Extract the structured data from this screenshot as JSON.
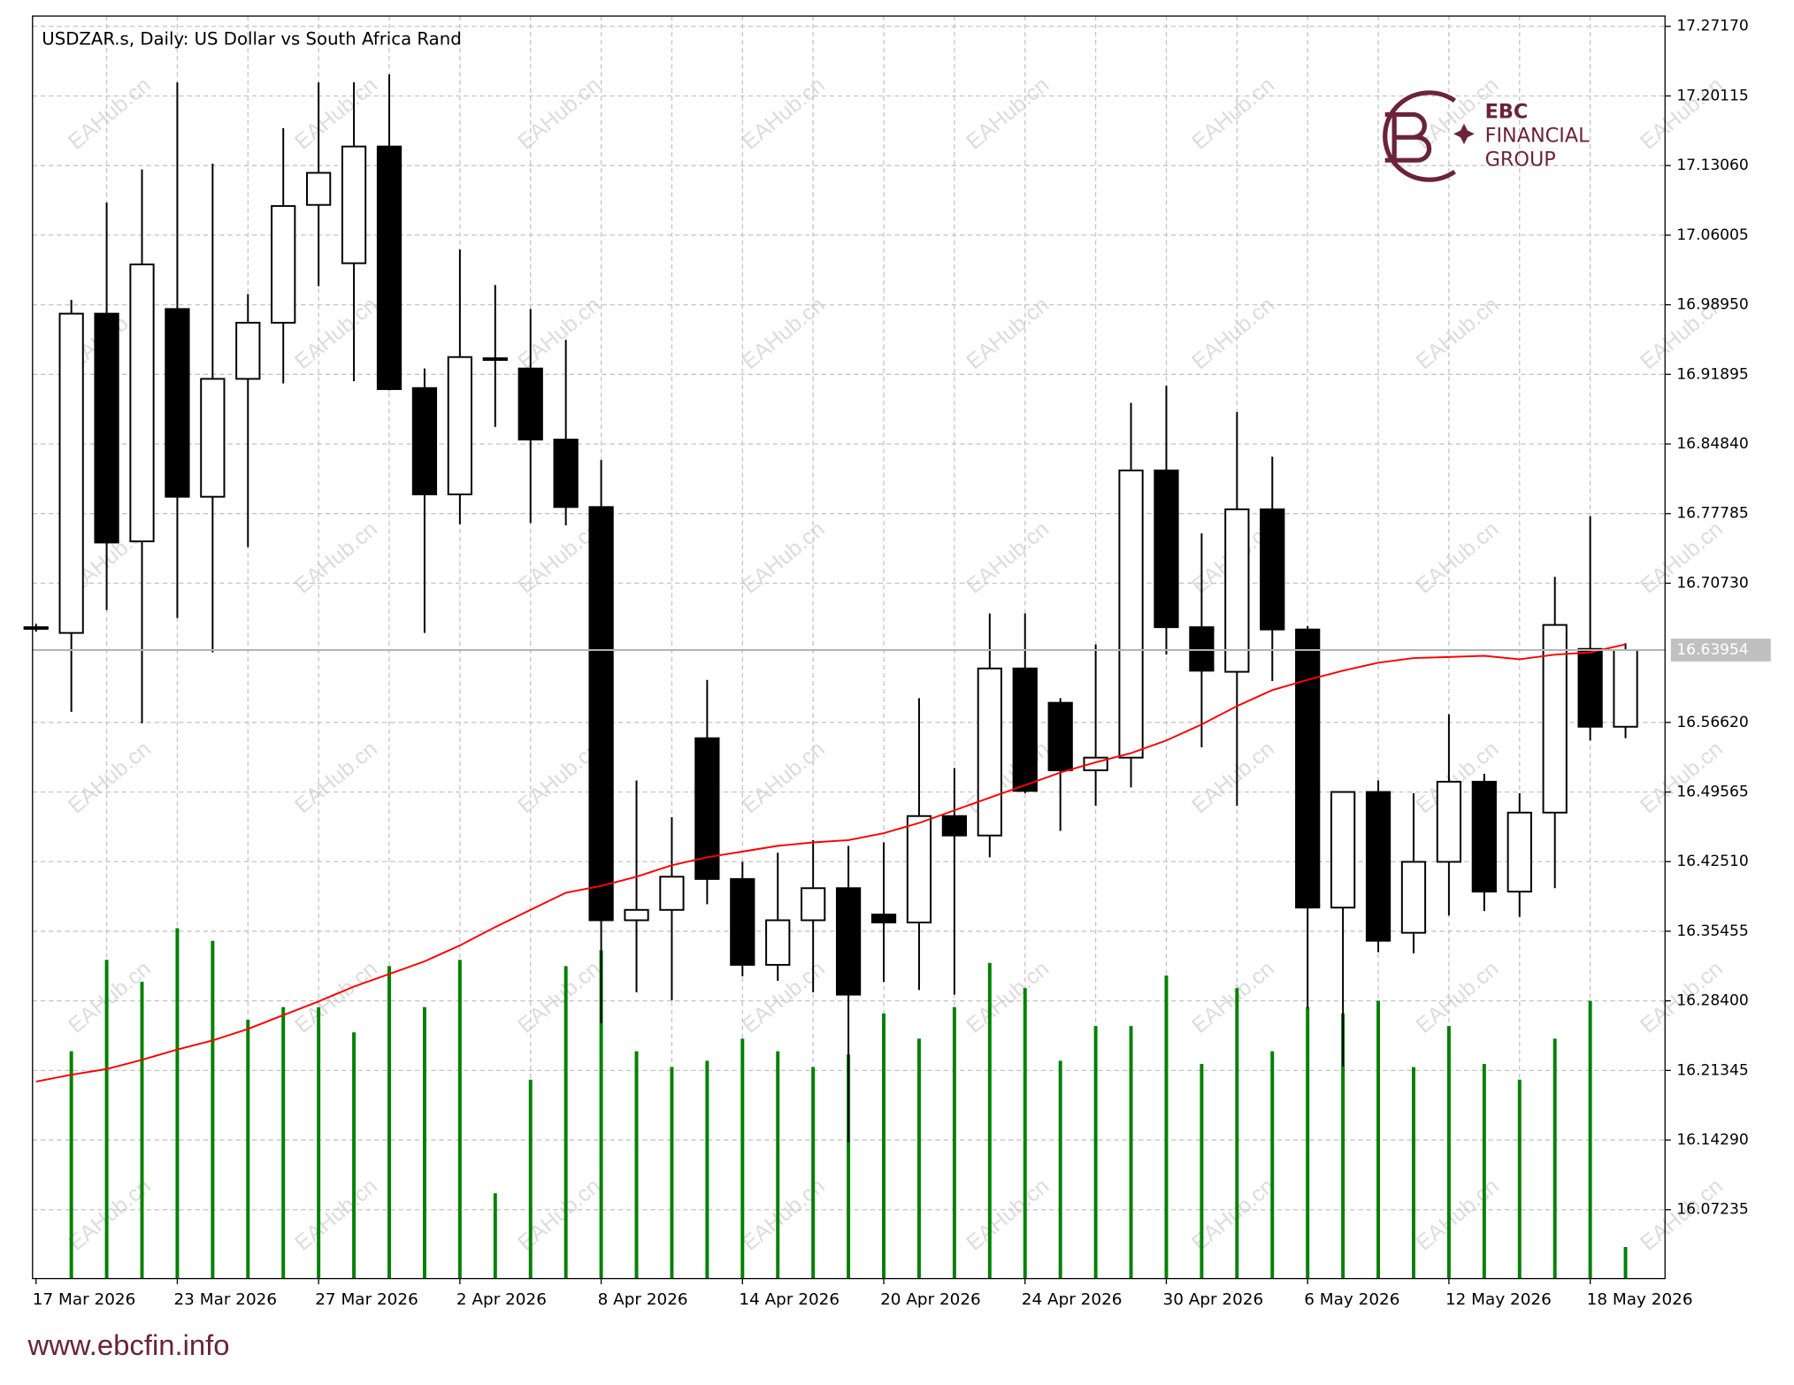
{
  "chart_data": {
    "type": "candlestick",
    "title": "USDZAR.s, Daily:  US Dollar vs South Africa Rand",
    "watermark": "EAHub.cn",
    "logo": {
      "top": "EBC",
      "middle": "FINANCIAL",
      "bottom": "GROUP",
      "color": "#6b2437"
    },
    "footer": "www.ebcfin.info",
    "categories": [
      "17 Mar 2026",
      null,
      null,
      null,
      "23 Mar 2026",
      null,
      null,
      null,
      "27 Mar 2026",
      null,
      null,
      null,
      "2 Apr 2026",
      null,
      null,
      null,
      "8 Apr 2026",
      null,
      null,
      null,
      "14 Apr 2026",
      null,
      null,
      null,
      "20 Apr 2026",
      null,
      null,
      null,
      "24 Apr 2026",
      null,
      null,
      null,
      "30 Apr 2026",
      null,
      null,
      null,
      "6 May 2026",
      null,
      null,
      null,
      "12 May 2026",
      null,
      null,
      null,
      "18 May 2026",
      null
    ],
    "open": [
      16.6615,
      16.6569,
      16.9805,
      16.7497,
      16.9852,
      16.7949,
      16.9144,
      16.9713,
      17.0907,
      17.0316,
      17.1499,
      16.9051,
      16.7973,
      16.9353,
      16.9249,
      16.8529,
      16.7845,
      16.3657,
      16.3762,
      16.5502,
      16.4075,
      16.3205,
      16.3657,
      16.3982,
      16.3715,
      16.3634,
      16.4713,
      16.4516,
      16.6209,
      16.5861,
      16.5177,
      16.5305,
      16.8216,
      16.6627,
      16.6175,
      16.7822,
      16.6604,
      16.3785,
      16.4957,
      16.353,
      16.4249,
      16.5061,
      16.3947,
      16.4748,
      16.6407,
      16.5618
    ],
    "high": [
      16.6662,
      16.9945,
      17.0931,
      17.1267,
      17.2149,
      17.1325,
      17.0003,
      17.1685,
      17.2149,
      17.2149,
      17.223,
      16.9249,
      17.0455,
      17.0095,
      16.9852,
      16.9539,
      16.8321,
      16.5073,
      16.4701,
      16.6093,
      16.4249,
      16.4342,
      16.4469,
      16.4411,
      16.4446,
      16.5908,
      16.52,
      16.6766,
      16.6766,
      16.5908,
      16.6453,
      16.8901,
      16.9075,
      16.7578,
      16.8808,
      16.8355,
      16.6639,
      16.4957,
      16.5073,
      16.4945,
      16.5745,
      16.5142,
      16.4945,
      16.7137,
      16.7752,
      16.6465
    ],
    "low": [
      16.6581,
      16.5769,
      16.6801,
      16.5653,
      16.672,
      16.6372,
      16.7439,
      16.9098,
      17.0084,
      16.9121,
      16.9028,
      16.6569,
      16.7671,
      16.8657,
      16.7683,
      16.7659,
      16.2613,
      16.2927,
      16.2845,
      16.382,
      16.3089,
      16.3043,
      16.2927,
      16.1407,
      16.3031,
      16.295,
      16.2903,
      16.4295,
      16.4945,
      16.4562,
      16.4817,
      16.5003,
      16.6349,
      16.5409,
      16.4817,
      16.6082,
      16.2764,
      16.2173,
      16.3333,
      16.3321,
      16.3704,
      16.375,
      16.3692,
      16.3982,
      16.5479,
      16.5502
    ],
    "close": [
      16.6627,
      16.9805,
      16.7485,
      17.0304,
      16.7949,
      16.9144,
      16.9713,
      17.0896,
      17.1232,
      17.1499,
      16.904,
      16.7973,
      16.9365,
      16.9341,
      16.8529,
      16.7845,
      16.3657,
      16.3762,
      16.4098,
      16.4075,
      16.3205,
      16.3657,
      16.3982,
      16.2903,
      16.3634,
      16.4713,
      16.4516,
      16.6209,
      16.4968,
      16.5177,
      16.5305,
      16.8216,
      16.6627,
      16.6186,
      16.7822,
      16.6604,
      16.3785,
      16.4957,
      16.3449,
      16.4249,
      16.5061,
      16.3947,
      16.4748,
      16.665,
      16.5618,
      16.63954
    ],
    "bull_color": "#ffffff",
    "bear_color": "#000000",
    "wick_color": "#000000",
    "ma": {
      "color": "#ff0000",
      "values": [
        16.2022,
        16.2091,
        16.2149,
        16.2242,
        16.2347,
        16.2439,
        16.2555,
        16.2695,
        16.2834,
        16.2985,
        16.3112,
        16.324,
        16.3402,
        16.3588,
        16.3762,
        16.3936,
        16.4005,
        16.4098,
        16.4214,
        16.4295,
        16.4353,
        16.4411,
        16.4446,
        16.4469,
        16.4539,
        16.4643,
        16.4771,
        16.4899,
        16.5026,
        16.5154,
        16.5258,
        16.5351,
        16.5479,
        16.5641,
        16.5827,
        16.5989,
        16.6093,
        16.6186,
        16.6267,
        16.6314,
        16.6325,
        16.6337,
        16.6302,
        16.6349,
        16.6372,
        16.6453
      ]
    },
    "volume": {
      "color": "#008000",
      "values": [
        null,
        72,
        101,
        94,
        111,
        107,
        82,
        86,
        86,
        78,
        99,
        86,
        101,
        27,
        63,
        99,
        104,
        72,
        67,
        69,
        76,
        72,
        67,
        71,
        84,
        76,
        86,
        100,
        92,
        69,
        80,
        80,
        96,
        68,
        92,
        72,
        86,
        84,
        88,
        67,
        80,
        68,
        63,
        76,
        88,
        10
      ]
    },
    "volume_lim": [
      0,
      400
    ],
    "ylim": [
      16.00255,
      17.28214
    ],
    "yticks": [
      {
        "value": 17.2717,
        "label": "17.27170"
      },
      {
        "value": 17.20115,
        "label": "17.20115"
      },
      {
        "value": 17.1306,
        "label": "17.13060"
      },
      {
        "value": 17.06005,
        "label": "17.06005"
      },
      {
        "value": 16.9895,
        "label": "16.98950"
      },
      {
        "value": 16.91895,
        "label": "16.91895"
      },
      {
        "value": 16.8484,
        "label": "16.84840"
      },
      {
        "value": 16.77785,
        "label": "16.77785"
      },
      {
        "value": 16.7073,
        "label": "16.70730"
      },
      {
        "value": 16.5662,
        "label": "16.56620"
      },
      {
        "value": 16.49565,
        "label": "16.49565"
      },
      {
        "value": 16.4251,
        "label": "16.42510"
      },
      {
        "value": 16.35455,
        "label": "16.35455"
      },
      {
        "value": 16.284,
        "label": "16.28400"
      },
      {
        "value": 16.21345,
        "label": "16.21345"
      },
      {
        "value": 16.1429,
        "label": "16.14290"
      },
      {
        "value": 16.07235,
        "label": "16.07235"
      }
    ],
    "grid": true
  }
}
